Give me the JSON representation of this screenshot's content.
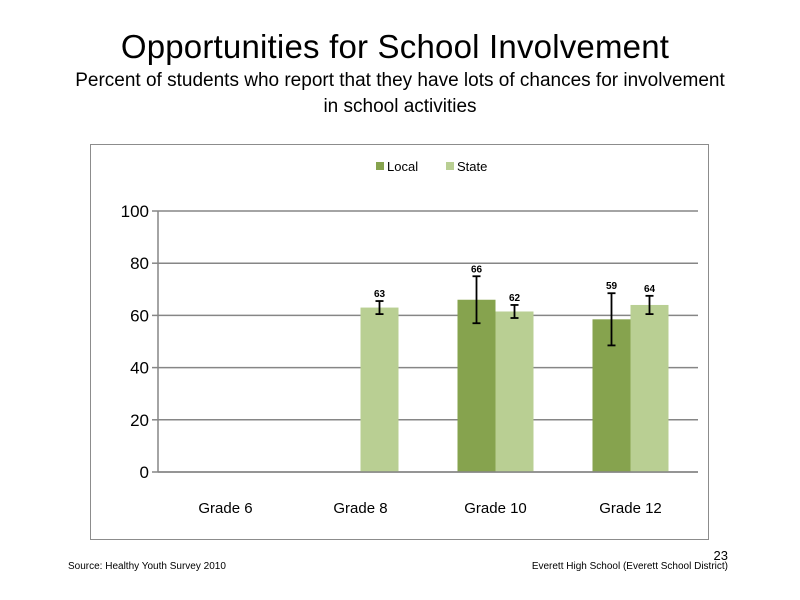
{
  "slide": {
    "title": "Opportunities  for School Involvement",
    "subtitle": "Percent of students  who report that they have lots of chances  for involvement  in school activities",
    "source": "Source: Healthy Youth Survey 2010",
    "organization": "Everett High School (Everett School District)",
    "page_number": "23"
  },
  "chart_data": {
    "type": "bar",
    "categories": [
      "Grade 6",
      "Grade 8",
      "Grade 10",
      "Grade 12"
    ],
    "series": [
      {
        "name": "Local",
        "color": "#86a34e",
        "values": [
          null,
          null,
          66,
          58.5
        ],
        "labels": [
          "",
          "",
          "66",
          "59"
        ],
        "error": [
          null,
          null,
          [
            57,
            75
          ],
          [
            48.5,
            68.5
          ]
        ]
      },
      {
        "name": "State",
        "color": "#b9cf93",
        "values": [
          null,
          63,
          61.5,
          64
        ],
        "labels": [
          "",
          "63",
          "62",
          "64"
        ],
        "error": [
          null,
          [
            60.5,
            65.5
          ],
          [
            59,
            64
          ],
          [
            60.5,
            67.5
          ]
        ]
      }
    ],
    "yticks": [
      "0",
      "20",
      "40",
      "60",
      "80",
      "100"
    ],
    "ylim": [
      0,
      100
    ],
    "grid": true,
    "legend": "top-center",
    "title": "",
    "xlabel": "",
    "ylabel": ""
  }
}
